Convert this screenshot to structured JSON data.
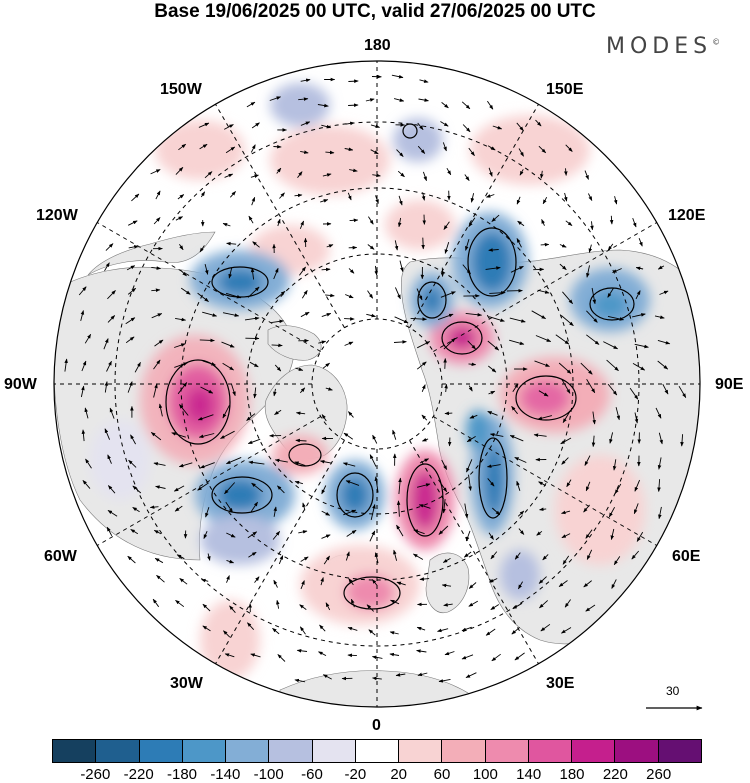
{
  "title": "Base 19/06/2025 00 UTC, valid 27/06/2025 00 UTC",
  "brand": "MODES",
  "brand_mark": "©",
  "longitude_labels": {
    "lon_180": "180",
    "lon_150e": "150E",
    "lon_120e": "120E",
    "lon_90e": "90E",
    "lon_60e": "60E",
    "lon_30e": "30E",
    "lon_0": "0",
    "lon_30w": "30W",
    "lon_60w": "60W",
    "lon_90w": "90W",
    "lon_120w": "120W",
    "lon_150w": "150W"
  },
  "map": {
    "projection": "north-polar-stereographic",
    "graticule": "dashed",
    "land_color": "#e8e8e8",
    "anomaly_features": [
      {
        "sign": "positive",
        "value": 180,
        "near": "90W"
      },
      {
        "sign": "positive",
        "value": 180,
        "near": "150E / 120E"
      },
      {
        "sign": "positive",
        "value": 140,
        "near": "90E"
      },
      {
        "sign": "positive",
        "value": 180,
        "near": "30E"
      },
      {
        "sign": "positive",
        "value": 100,
        "near": "0"
      },
      {
        "sign": "negative",
        "value": -180,
        "near": "120E"
      },
      {
        "sign": "negative",
        "value": -140,
        "near": "120W"
      },
      {
        "sign": "negative",
        "value": -140,
        "near": "60W"
      },
      {
        "sign": "negative",
        "value": -140,
        "near": "45W"
      },
      {
        "sign": "negative",
        "value": -180,
        "near": "60E"
      },
      {
        "sign": "negative",
        "value": -100,
        "near": "105E"
      },
      {
        "sign": "negative",
        "value": -60,
        "near": "165W"
      }
    ]
  },
  "vector_scale": {
    "label": "30"
  },
  "colorbar": {
    "colors": [
      "#15405f",
      "#1f5f8f",
      "#2d7cb6",
      "#4d97c8",
      "#83aed6",
      "#b6c0e0",
      "#e4e3f0",
      "#ffffff",
      "#f8d3d3",
      "#f3aeb8",
      "#ee8bae",
      "#e0569f",
      "#c51f8d",
      "#9c0f80",
      "#650f72"
    ],
    "ticks": [
      "-260",
      "-220",
      "-180",
      "-140",
      "-100",
      "-60",
      "-20",
      "20",
      "60",
      "100",
      "140",
      "180",
      "220",
      "260"
    ]
  }
}
